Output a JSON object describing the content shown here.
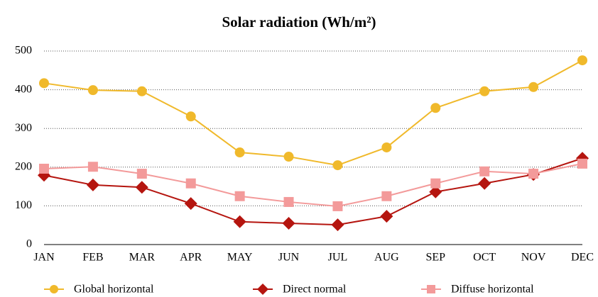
{
  "chart_data": {
    "type": "line",
    "title": "Solar radiation (Wh/m²)",
    "categories": [
      "JAN",
      "FEB",
      "MAR",
      "APR",
      "MAY",
      "JUN",
      "JUL",
      "AUG",
      "SEP",
      "OCT",
      "NOV",
      "DEC"
    ],
    "series": [
      {
        "name": "Global horizontal",
        "color": "#f0b92b",
        "marker": "circle",
        "values": [
          417,
          399,
          396,
          331,
          238,
          227,
          205,
          251,
          353,
          396,
          407,
          476
        ]
      },
      {
        "name": "Direct normal",
        "color": "#b5150f",
        "marker": "diamond",
        "values": [
          179,
          154,
          148,
          106,
          59,
          55,
          51,
          73,
          136,
          158,
          181,
          223
        ]
      },
      {
        "name": "Diffuse horizontal",
        "color": "#f39a9a",
        "marker": "square",
        "values": [
          196,
          201,
          183,
          158,
          125,
          110,
          99,
          125,
          158,
          189,
          183,
          209
        ]
      }
    ],
    "ylim": [
      0,
      500
    ],
    "yticks": [
      0,
      100,
      200,
      300,
      400,
      500
    ],
    "grid": true,
    "legend": "bottom"
  }
}
